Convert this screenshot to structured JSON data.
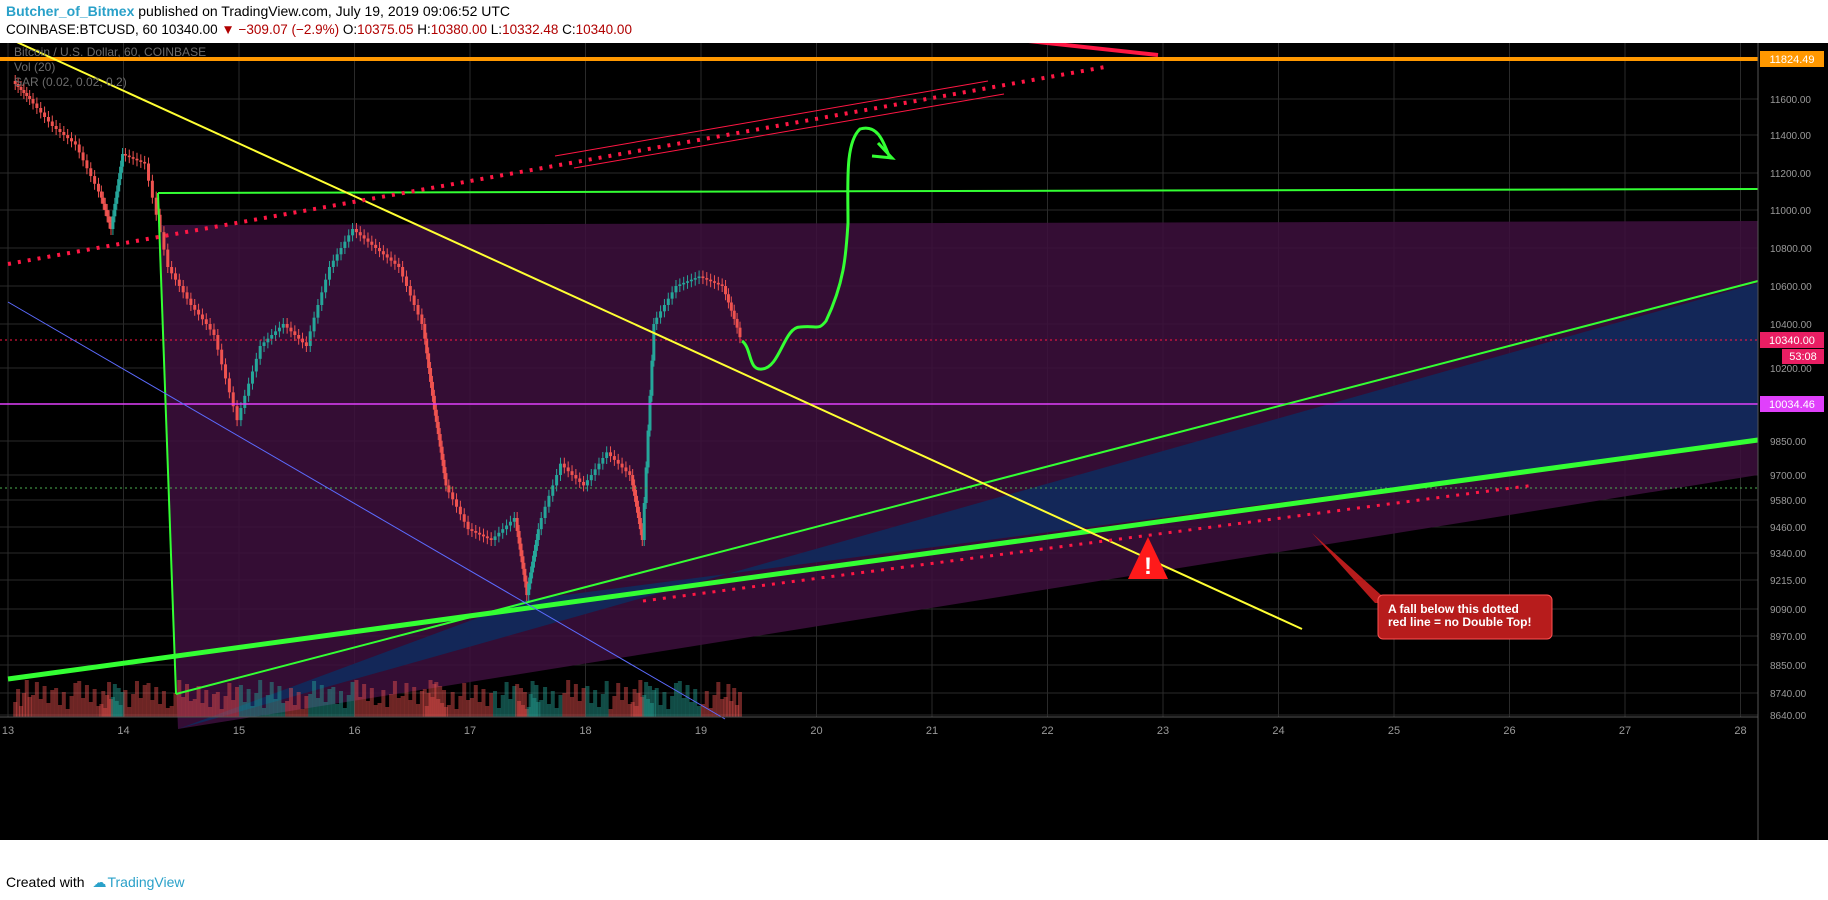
{
  "header": {
    "author": "Butcher_of_Bitmex",
    "published": " published on TradingView.com, July 19, 2019 09:06:52 UTC",
    "symbol": "COINBASE:BTCUSD, 60",
    "last": "10340.00",
    "change": "−309.07 (−2.9%)",
    "o_label": "O:",
    "o_val": "10375.05",
    "h_label": "H:",
    "h_val": "10380.00",
    "l_label": "L:",
    "l_val": "10332.48",
    "c_label": "C:",
    "c_val": "10340.00"
  },
  "legend": {
    "title": "Bitcoin / U.S. Dollar, 60, COINBASE",
    "vol": "Vol (20)",
    "sar": "SAR (0.02, 0.02, 0.2)"
  },
  "footer": {
    "created": "Created with",
    "brand": "TradingView"
  },
  "annotation": {
    "line1": "A fall below this dotted",
    "line2": "red line = no Double Top!"
  },
  "price_tags": {
    "top_level": "11824.49",
    "last_price": "10340.00",
    "countdown": "53:08",
    "support_level": "10034.46"
  },
  "colors": {
    "background": "#000000",
    "up_candle": "#26a69a",
    "down_candle": "#ef5350",
    "orange_level": "#ff9800",
    "magenta_level": "#e040fb",
    "green_line": "#33ff33",
    "yellow_line": "#ffff33",
    "dotted_red": "#ff1744",
    "purple_zone": "#3d0f3d",
    "blue_zone": "#0f2a5c"
  },
  "chart_data": {
    "type": "candlestick",
    "title": "Bitcoin / U.S. Dollar, 60, COINBASE",
    "x_ticks": [
      "13",
      "14",
      "15",
      "16",
      "17",
      "18",
      "19",
      "20",
      "21",
      "22",
      "23",
      "24",
      "25",
      "26",
      "27",
      "28"
    ],
    "y_ticks": [
      "11600.00",
      "11400.00",
      "11200.00",
      "11000.00",
      "10800.00",
      "10600.00",
      "10400.00",
      "10200.00",
      "9850.00",
      "9700.00",
      "9580.00",
      "9460.00",
      "9340.00",
      "9215.00",
      "9090.00",
      "8970.00",
      "8850.00",
      "8740.00",
      "8640.00"
    ],
    "ylim": [
      8640,
      11950
    ],
    "levels": [
      {
        "label": "11824.49",
        "value": 11824.49
      },
      {
        "label": "10340.00",
        "value": 10340.0
      },
      {
        "label": "10034.46",
        "value": 10034.46
      }
    ],
    "series": [
      {
        "key": "price",
        "points": [
          {
            "x": 13.05,
            "close": 11700
          },
          {
            "x": 13.2,
            "close": 11600
          },
          {
            "x": 13.4,
            "close": 11450
          },
          {
            "x": 13.6,
            "close": 11350
          },
          {
            "x": 13.8,
            "close": 11100
          },
          {
            "x": 13.9,
            "close": 10900
          },
          {
            "x": 14.0,
            "close": 11300
          },
          {
            "x": 14.2,
            "close": 11250
          },
          {
            "x": 14.4,
            "close": 10700
          },
          {
            "x": 14.6,
            "close": 10500
          },
          {
            "x": 14.8,
            "close": 10350
          },
          {
            "x": 15.0,
            "close": 9950
          },
          {
            "x": 15.2,
            "close": 10300
          },
          {
            "x": 15.4,
            "close": 10400
          },
          {
            "x": 15.6,
            "close": 10300
          },
          {
            "x": 15.8,
            "close": 10700
          },
          {
            "x": 16.0,
            "close": 10900
          },
          {
            "x": 16.2,
            "close": 10800
          },
          {
            "x": 16.4,
            "close": 10700
          },
          {
            "x": 16.6,
            "close": 10400
          },
          {
            "x": 16.7,
            "close": 10000
          },
          {
            "x": 16.8,
            "close": 9650
          },
          {
            "x": 17.0,
            "close": 9450
          },
          {
            "x": 17.2,
            "close": 9400
          },
          {
            "x": 17.4,
            "close": 9500
          },
          {
            "x": 17.5,
            "close": 9150
          },
          {
            "x": 17.6,
            "close": 9450
          },
          {
            "x": 17.8,
            "close": 9750
          },
          {
            "x": 18.0,
            "close": 9650
          },
          {
            "x": 18.2,
            "close": 9800
          },
          {
            "x": 18.4,
            "close": 9700
          },
          {
            "x": 18.5,
            "close": 9400
          },
          {
            "x": 18.6,
            "close": 10400
          },
          {
            "x": 18.8,
            "close": 10600
          },
          {
            "x": 19.0,
            "close": 10650
          },
          {
            "x": 19.2,
            "close": 10600
          },
          {
            "x": 19.35,
            "close": 10340
          }
        ]
      }
    ]
  }
}
